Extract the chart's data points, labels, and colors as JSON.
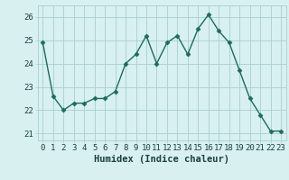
{
  "x": [
    0,
    1,
    2,
    3,
    4,
    5,
    6,
    7,
    8,
    9,
    10,
    11,
    12,
    13,
    14,
    15,
    16,
    17,
    18,
    19,
    20,
    21,
    22,
    23
  ],
  "y": [
    24.9,
    22.6,
    22.0,
    22.3,
    22.3,
    22.5,
    22.5,
    22.8,
    24.0,
    24.4,
    25.2,
    24.0,
    24.9,
    25.2,
    24.4,
    25.5,
    26.1,
    25.4,
    24.9,
    23.7,
    22.5,
    21.8,
    21.1,
    21.1
  ],
  "line_color": "#1c6b5e",
  "marker": "D",
  "marker_size": 2.5,
  "bg_color": "#d8f0f0",
  "grid_color": "#aacece",
  "xlabel": "Humidex (Indice chaleur)",
  "ylim": [
    20.7,
    26.5
  ],
  "xlim": [
    -0.5,
    23.5
  ],
  "yticks": [
    21,
    22,
    23,
    24,
    25,
    26
  ],
  "xticks": [
    0,
    1,
    2,
    3,
    4,
    5,
    6,
    7,
    8,
    9,
    10,
    11,
    12,
    13,
    14,
    15,
    16,
    17,
    18,
    19,
    20,
    21,
    22,
    23
  ],
  "tick_fontsize": 6.5,
  "xlabel_fontsize": 7.5,
  "line_width": 1.0
}
